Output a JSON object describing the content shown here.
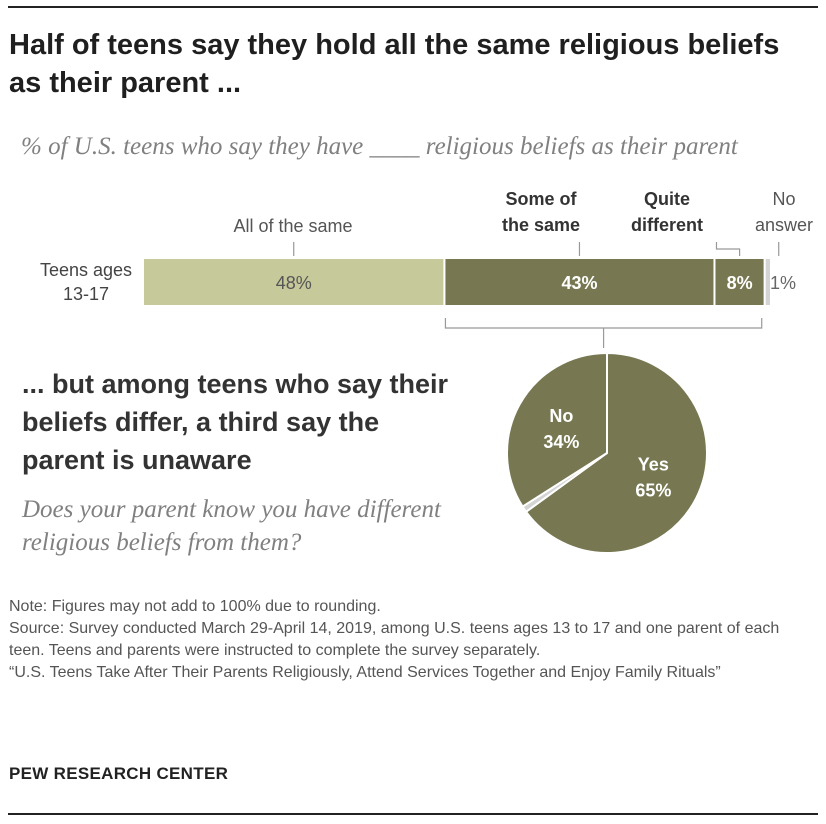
{
  "title": "Half of teens say they hold all the same religious beliefs as their parent ...",
  "subtitle": "% of U.S. teens who say they have ____ religious beliefs as their parent",
  "subhead": "... but among teens who say their beliefs differ, a third say the parent is unaware",
  "question": "Does your parent know you have different religious beliefs from them?",
  "notes": {
    "note": "Note: Figures may not add to 100% due to rounding.",
    "source": "Source: Survey conducted March 29-April 14, 2019, among U.S. teens ages 13 to 17 and one parent of each teen. Teens and parents were instructed to complete the survey separately.",
    "report": "“U.S. Teens Take After Their Parents Religiously, Attend Services Together and Enjoy Family Rituals”"
  },
  "logo": "PEW RESEARCH CENTER",
  "chart_data": [
    {
      "type": "bar",
      "orientation": "horizontal-stacked",
      "row_label": [
        "Teens ages",
        "13-17"
      ],
      "categories": [
        {
          "name": "All of the same",
          "header": [
            "All of the same"
          ],
          "value": 48,
          "label": "48%",
          "color": "#c6c99a",
          "label_color": "#555555",
          "bold": false
        },
        {
          "name": "Some of the same",
          "header": [
            "Some of",
            "the same"
          ],
          "value": 43,
          "label": "43%",
          "color": "#777852",
          "label_color": "#ffffff",
          "bold": true
        },
        {
          "name": "Quite different",
          "header": [
            "Quite",
            "different"
          ],
          "value": 8,
          "label": "8%",
          "color": "#777852",
          "label_color": "#ffffff",
          "bold": true
        },
        {
          "name": "No answer",
          "header": [
            "No",
            "answer"
          ],
          "value": 1,
          "label": "1%",
          "color": "#d4d4d4",
          "label_color": "#666666",
          "bold": false
        }
      ],
      "xlim": [
        0,
        100
      ]
    },
    {
      "type": "pie",
      "slices": [
        {
          "name": "No",
          "label": [
            "No",
            "34%"
          ],
          "value": 34,
          "color": "#777852"
        },
        {
          "name": "Yes",
          "label": [
            "Yes",
            "65%"
          ],
          "value": 65,
          "color": "#777852"
        },
        {
          "name": "No answer",
          "label": [],
          "value": 1,
          "color": "#d4d4d4"
        }
      ]
    }
  ]
}
